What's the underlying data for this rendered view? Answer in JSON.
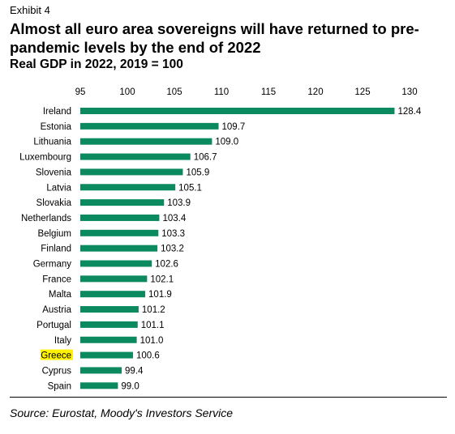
{
  "exhibit_label": "Exhibit 4",
  "source": "Source: Eurostat, Moody's Investors Service",
  "colors": {
    "bar": "#0b8a5f",
    "highlight": "#fff200"
  },
  "chart_data": {
    "type": "bar",
    "orientation": "horizontal",
    "title": "Almost all euro area sovereigns will have returned to pre-pandemic levels by the end of 2022",
    "subtitle": "Real GDP in 2022, 2019 = 100",
    "xlabel": "",
    "ylabel": "",
    "xlim": [
      95,
      130
    ],
    "xticks": [
      95,
      100,
      105,
      110,
      115,
      120,
      125,
      130
    ],
    "grid": false,
    "legend": "none",
    "highlighted_category": "Greece",
    "categories": [
      "Ireland",
      "Estonia",
      "Lithuania",
      "Luxembourg",
      "Slovenia",
      "Latvia",
      "Slovakia",
      "Netherlands",
      "Belgium",
      "Finland",
      "Germany",
      "France",
      "Malta",
      "Austria",
      "Portugal",
      "Italy",
      "Greece",
      "Cyprus",
      "Spain"
    ],
    "values": [
      128.4,
      109.7,
      109.0,
      106.7,
      105.9,
      105.1,
      103.9,
      103.4,
      103.3,
      103.2,
      102.6,
      102.1,
      101.9,
      101.2,
      101.1,
      101.0,
      100.6,
      99.4,
      99.0
    ],
    "labels": [
      "128.4",
      "109.7",
      "109.0",
      "106.7",
      "105.9",
      "105.1",
      "103.9",
      "103.4",
      "103.3",
      "103.2",
      "102.6",
      "102.1",
      "101.9",
      "101.2",
      "101.1",
      "101.0",
      "100.6",
      "99.4",
      "99.0"
    ]
  }
}
